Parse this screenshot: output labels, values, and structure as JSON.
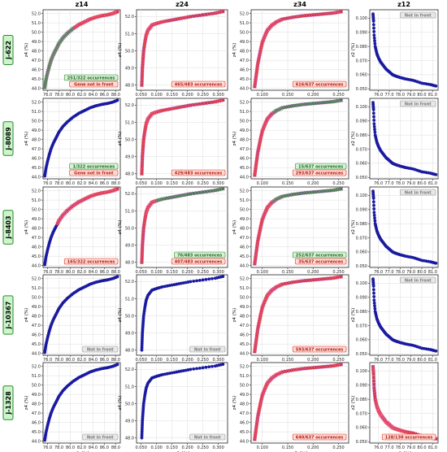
{
  "figure": {
    "columns": [
      {
        "title": "z14",
        "xlabel": "z1 (%)",
        "ylabel": "z4 (%)",
        "xticks": [
          "76.0",
          "78.0",
          "80.0",
          "82.0",
          "84.0",
          "86.0",
          "88.0"
        ],
        "yticks": [
          "44.0",
          "45.0",
          "46.0",
          "47.0",
          "48.0",
          "49.0",
          "50.0",
          "51.0",
          "52.0"
        ]
      },
      {
        "title": "z24",
        "xlabel": "z2 (%)",
        "ylabel": "z4 (%)",
        "xticks": [
          "0.050",
          "0.100",
          "0.150",
          "0.200",
          "0.250",
          "0.300"
        ],
        "yticks": [
          "48.0",
          "49.0",
          "50.0",
          "51.0",
          "52.0"
        ]
      },
      {
        "title": "z34",
        "xlabel": "z3 (%)",
        "ylabel": "z4 (%)",
        "xticks": [
          "0.100",
          "0.150",
          "0.200",
          "0.250"
        ],
        "yticks": [
          "44.0",
          "45.0",
          "46.0",
          "47.0",
          "48.0",
          "49.0",
          "50.0",
          "51.0",
          "52.0"
        ]
      },
      {
        "title": "z12",
        "xlabel": "z1 (%)",
        "ylabel": "z2 (%)",
        "xticks": [
          "76.0",
          "77.0",
          "78.0",
          "79.0",
          "80.0",
          "81.0"
        ],
        "yticks": [
          "0.050",
          "0.060",
          "0.070",
          "0.080",
          "0.090",
          "0.100"
        ]
      }
    ],
    "rows": [
      {
        "gene": "j-622",
        "cells": [
          {
            "boxes": [
              {
                "text": "251/322 occurrences",
                "style": "green"
              },
              {
                "text": "Gene not in front",
                "style": "red"
              }
            ]
          },
          {
            "boxes": [
              {
                "text": "465/483 occurrences",
                "style": "red"
              }
            ]
          },
          {
            "boxes": [
              {
                "text": "616/637 occurrences",
                "style": "red"
              }
            ]
          },
          {
            "boxes": [
              {
                "text": "Not in front",
                "style": "gray"
              }
            ]
          }
        ]
      },
      {
        "gene": "j-8089",
        "cells": [
          {
            "boxes": [
              {
                "text": "1/322 occurrences",
                "style": "green"
              },
              {
                "text": "Gene not in front",
                "style": "red"
              }
            ]
          },
          {
            "boxes": [
              {
                "text": "429/483 occurrences",
                "style": "red"
              }
            ]
          },
          {
            "boxes": [
              {
                "text": "15/637 occurrences",
                "style": "green"
              },
              {
                "text": "293/637 occurrences",
                "style": "red"
              }
            ]
          },
          {
            "boxes": [
              {
                "text": "Not in front",
                "style": "gray"
              }
            ]
          }
        ]
      },
      {
        "gene": "j-8403",
        "cells": [
          {
            "boxes": [
              {
                "text": "165/322 occurrences",
                "style": "red"
              }
            ]
          },
          {
            "boxes": [
              {
                "text": "76/483 occurrences",
                "style": "green"
              },
              {
                "text": "407/483 occurrences",
                "style": "red"
              }
            ]
          },
          {
            "boxes": [
              {
                "text": "252/637 occurrences",
                "style": "green"
              },
              {
                "text": "35/637 occurrences",
                "style": "red"
              }
            ]
          },
          {
            "boxes": [
              {
                "text": "Not in front",
                "style": "gray"
              }
            ]
          }
        ]
      },
      {
        "gene": "j-10367",
        "cells": [
          {
            "boxes": [
              {
                "text": "Not in front",
                "style": "gray"
              }
            ]
          },
          {
            "boxes": [
              {
                "text": "Not in front",
                "style": "gray"
              }
            ]
          },
          {
            "boxes": [
              {
                "text": "593/637 occurrences",
                "style": "red"
              }
            ]
          },
          {
            "boxes": [
              {
                "text": "Not in front",
                "style": "gray"
              }
            ]
          }
        ]
      },
      {
        "gene": "j-1328",
        "cells": [
          {
            "boxes": [
              {
                "text": "Not in front",
                "style": "gray"
              }
            ]
          },
          {
            "boxes": [
              {
                "text": "Not in front",
                "style": "gray"
              }
            ]
          },
          {
            "boxes": [
              {
                "text": "640/637 occurrences",
                "style": "red"
              }
            ]
          },
          {
            "boxes": [
              {
                "text": "128/130 occurrences",
                "style": "red"
              }
            ]
          }
        ]
      }
    ],
    "highlights": [
      [
        "greenred",
        "red",
        "red",
        "none"
      ],
      [
        "none",
        "red",
        "greenred",
        "none"
      ],
      [
        "red",
        "greenred",
        "greenred",
        "none"
      ],
      [
        "none",
        "none",
        "red",
        "none"
      ],
      [
        "none",
        "none",
        "red",
        "red"
      ]
    ],
    "colors": {
      "front": "#1a1aa0",
      "red": "#e03020",
      "green": "#2a8a2a",
      "magenta": "#f080e0",
      "label_bg": "#ccf5cc",
      "label_edge": "#2a8a2a"
    }
  },
  "chart_data": [
    {
      "type": "line",
      "title": "z14",
      "xlabel": "z1 (%)",
      "ylabel": "z4 (%)",
      "xlim": [
        75.2,
        88.8
      ],
      "ylim": [
        43.8,
        52.4
      ],
      "x": [
        75.5,
        75.7,
        76.0,
        76.3,
        76.6,
        77.0,
        77.5,
        78.0,
        78.7,
        79.5,
        80.5,
        81.5,
        82.5,
        83.5,
        84.5,
        85.5,
        86.5,
        87.5,
        88.3
      ],
      "series": [
        {
          "values": [
            44.1,
            44.9,
            45.7,
            46.4,
            47.0,
            47.6,
            48.2,
            48.8,
            49.4,
            49.9,
            50.4,
            50.8,
            51.1,
            51.4,
            51.6,
            51.75,
            51.85,
            52.0,
            52.2
          ]
        }
      ]
    },
    {
      "type": "line",
      "title": "z24",
      "xlabel": "z2 (%)",
      "ylabel": "z4 (%)",
      "xlim": [
        0.035,
        0.33
      ],
      "ylim": [
        47.7,
        52.4
      ],
      "x": [
        0.052,
        0.053,
        0.054,
        0.056,
        0.058,
        0.062,
        0.066,
        0.072,
        0.085,
        0.1,
        0.12,
        0.15,
        0.18,
        0.21,
        0.25,
        0.29,
        0.315
      ],
      "series": [
        {
          "values": [
            48.0,
            48.5,
            49.0,
            49.5,
            50.0,
            50.5,
            50.9,
            51.2,
            51.5,
            51.6,
            51.7,
            51.8,
            51.9,
            52.0,
            52.1,
            52.2,
            52.3
          ]
        }
      ]
    },
    {
      "type": "line",
      "title": "z34",
      "xlabel": "z3 (%)",
      "ylabel": "z4 (%)",
      "xlim": [
        0.078,
        0.27
      ],
      "ylim": [
        43.8,
        52.4
      ],
      "x": [
        0.085,
        0.087,
        0.089,
        0.091,
        0.094,
        0.097,
        0.1,
        0.105,
        0.11,
        0.118,
        0.128,
        0.14,
        0.16,
        0.18,
        0.2,
        0.22,
        0.24,
        0.255
      ],
      "series": [
        {
          "values": [
            44.2,
            45.0,
            45.8,
            46.6,
            47.4,
            48.2,
            48.9,
            49.6,
            50.2,
            50.7,
            51.1,
            51.4,
            51.6,
            51.75,
            51.85,
            51.95,
            52.05,
            52.2
          ]
        }
      ]
    },
    {
      "type": "line",
      "title": "z12",
      "xlabel": "z1 (%)",
      "ylabel": "z2 (%)",
      "xlim": [
        75.2,
        81.5
      ],
      "ylim": [
        0.049,
        0.106
      ],
      "x": [
        75.5,
        75.55,
        75.6,
        75.7,
        75.85,
        76.0,
        76.2,
        76.4,
        76.7,
        77.0,
        77.3,
        77.6,
        78.0,
        78.5,
        79.2,
        80.0,
        80.8,
        81.3
      ],
      "series": [
        {
          "values": [
            0.103,
            0.098,
            0.088,
            0.08,
            0.075,
            0.072,
            0.069,
            0.067,
            0.064,
            0.062,
            0.06,
            0.059,
            0.058,
            0.057,
            0.056,
            0.054,
            0.053,
            0.052
          ]
        }
      ]
    }
  ]
}
